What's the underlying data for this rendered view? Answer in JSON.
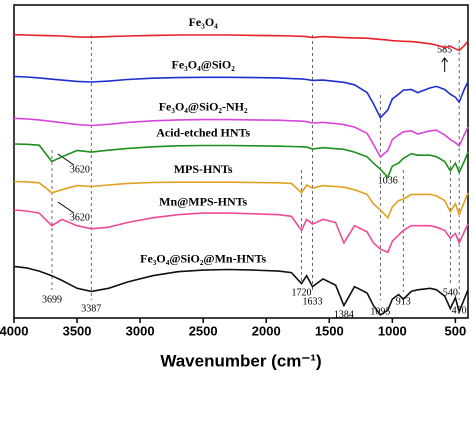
{
  "chart_data": {
    "type": "line",
    "xlabel": "Wavenumber (cm⁻¹)",
    "xlim": [
      4000,
      400
    ],
    "ylim": [
      0,
      100
    ],
    "xticks": [
      4000,
      3500,
      3000,
      2500,
      2000,
      1500,
      1000,
      500
    ],
    "x": [
      4000,
      3900,
      3800,
      3700,
      3620,
      3500,
      3387,
      3250,
      3100,
      2900,
      2700,
      2500,
      2300,
      2100,
      1900,
      1800,
      1720,
      1680,
      1633,
      1550,
      1450,
      1384,
      1300,
      1200,
      1150,
      1095,
      1036,
      1000,
      950,
      913,
      850,
      800,
      700,
      650,
      585,
      540,
      500,
      470,
      430,
      400
    ],
    "series": [
      {
        "name": "Fe₃O₄",
        "color": "#e8202a",
        "values": [
          90.5,
          90.4,
          90.3,
          90.2,
          90.1,
          89.8,
          89.7,
          89.9,
          90.1,
          90.3,
          90.4,
          90.4,
          90.4,
          90.3,
          90.2,
          90.1,
          90.0,
          89.9,
          89.6,
          89.9,
          89.7,
          89.6,
          89.5,
          89.4,
          89.2,
          89.0,
          88.8,
          88.6,
          88.5,
          88.4,
          88.3,
          88.1,
          87.6,
          87.2,
          86.4,
          86.8,
          86.0,
          85.5,
          87.0,
          88.5
        ]
      },
      {
        "name": "Fe₃O₄@SiO₂",
        "color": "#1f2fcf",
        "values": [
          77.2,
          77.0,
          76.7,
          76.3,
          76.0,
          75.6,
          75.4,
          75.7,
          76.2,
          76.6,
          76.8,
          76.9,
          76.9,
          76.8,
          76.7,
          76.5,
          76.4,
          76.2,
          75.9,
          76.0,
          75.6,
          75.3,
          74.5,
          72.0,
          68.5,
          64.0,
          66.5,
          70.0,
          71.5,
          72.8,
          73.0,
          72.0,
          73.5,
          74.0,
          73.0,
          71.5,
          70.5,
          69.0,
          73.0,
          75.5
        ]
      },
      {
        "name": "Fe₃O₄@SiO₂-NH₂",
        "color": "#d946d9",
        "values": [
          63.8,
          63.6,
          63.3,
          62.8,
          62.4,
          61.8,
          61.5,
          61.9,
          62.5,
          63.0,
          63.3,
          63.4,
          63.4,
          63.3,
          63.2,
          63.0,
          62.9,
          62.7,
          62.3,
          62.5,
          62.1,
          61.8,
          61.0,
          59.0,
          55.5,
          51.5,
          53.5,
          57.0,
          58.5,
          59.5,
          59.8,
          58.8,
          59.8,
          60.0,
          58.5,
          57.0,
          56.0,
          55.0,
          58.5,
          61.0
        ]
      },
      {
        "name": "Acid-etched HNTs",
        "color": "#1f8f1f",
        "values": [
          55.6,
          55.5,
          55.2,
          50.0,
          51.5,
          53.5,
          53.0,
          53.6,
          54.2,
          54.7,
          55.0,
          55.1,
          55.1,
          55.0,
          54.9,
          54.8,
          54.7,
          54.6,
          54.0,
          54.4,
          54.1,
          53.9,
          53.0,
          51.5,
          49.5,
          47.5,
          45.0,
          48.5,
          49.5,
          51.0,
          52.5,
          52.0,
          52.0,
          51.5,
          50.0,
          47.0,
          49.5,
          46.5,
          50.0,
          53.0
        ]
      },
      {
        "name": "MPS-HNTs",
        "color": "#e0a020",
        "values": [
          43.6,
          43.5,
          43.2,
          40.0,
          41.0,
          42.3,
          42.0,
          42.5,
          43.0,
          43.3,
          43.4,
          43.4,
          43.4,
          43.3,
          43.2,
          43.0,
          40.0,
          42.5,
          41.5,
          42.3,
          42.0,
          41.8,
          41.0,
          39.5,
          36.5,
          34.5,
          32.0,
          35.5,
          37.5,
          38.0,
          39.5,
          39.5,
          39.5,
          39.0,
          37.5,
          34.0,
          36.5,
          33.0,
          37.0,
          40.0
        ]
      },
      {
        "name": "Mn@MPS-HNTs",
        "color": "#ee4a9a",
        "values": [
          34.5,
          34.2,
          33.5,
          29.5,
          31.5,
          29.5,
          28.5,
          29.0,
          30.5,
          32.0,
          33.0,
          33.5,
          33.5,
          33.3,
          33.0,
          32.5,
          28.0,
          31.5,
          30.0,
          31.5,
          30.5,
          24.0,
          29.5,
          27.5,
          24.0,
          22.0,
          21.0,
          24.5,
          26.5,
          28.0,
          29.5,
          29.5,
          29.5,
          29.0,
          28.0,
          25.5,
          27.0,
          24.0,
          27.5,
          30.0
        ]
      },
      {
        "name": "Fe₃O₄@SiO₂@Mn-HNTs",
        "color": "#111111",
        "values": [
          16.5,
          16.0,
          15.0,
          13.5,
          12.0,
          9.5,
          8.5,
          9.5,
          11.5,
          13.5,
          14.8,
          15.3,
          15.5,
          15.3,
          15.0,
          14.5,
          11.0,
          13.5,
          10.0,
          12.5,
          10.5,
          4.0,
          10.0,
          8.0,
          4.0,
          1.0,
          2.5,
          6.0,
          7.5,
          6.0,
          8.5,
          9.0,
          9.5,
          9.0,
          7.0,
          3.0,
          6.5,
          2.0,
          6.0,
          9.0
        ]
      }
    ],
    "annotations": [
      {
        "text": "585",
        "x": 585
      },
      {
        "text": "1036",
        "x": 1036
      },
      {
        "text": "3620",
        "x": 3620
      },
      {
        "text": "3620",
        "x": 3620
      },
      {
        "text": "3699",
        "x": 3699
      },
      {
        "text": "3387",
        "x": 3387
      },
      {
        "text": "1720",
        "x": 1720
      },
      {
        "text": "1633",
        "x": 1633
      },
      {
        "text": "1384",
        "x": 1384
      },
      {
        "text": "1095",
        "x": 1095
      },
      {
        "text": "913",
        "x": 913
      },
      {
        "text": "540",
        "x": 540
      },
      {
        "text": "470",
        "x": 470
      }
    ]
  }
}
